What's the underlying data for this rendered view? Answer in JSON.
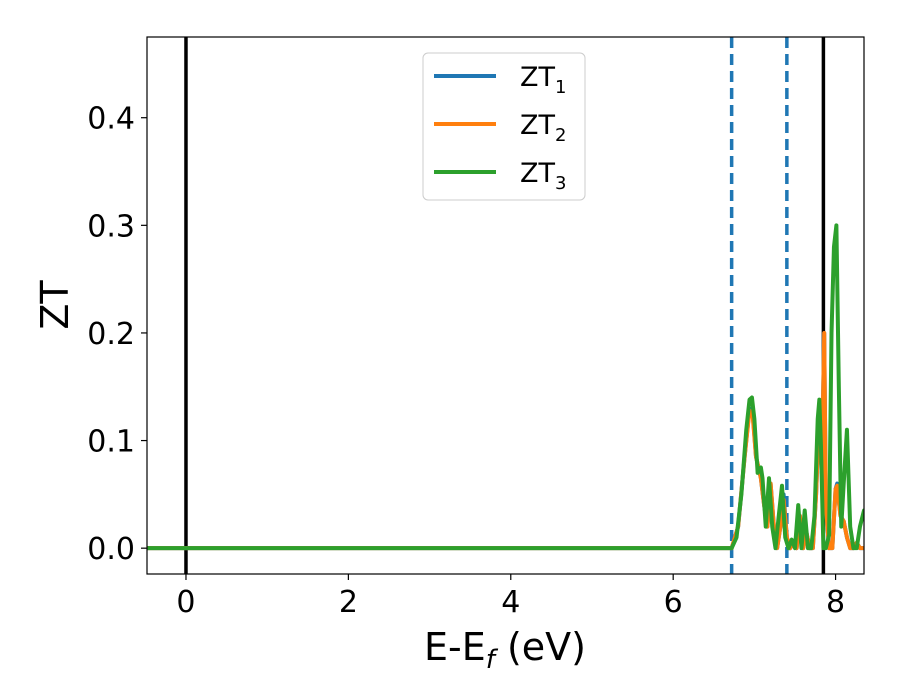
{
  "chart_data": {
    "type": "line",
    "xlabel": "E-E",
    "xlabel_sub": "f",
    "xlabel_unit": " (eV)",
    "ylabel": "ZT",
    "xlim": [
      -0.48,
      8.35
    ],
    "ylim": [
      -0.024,
      0.475
    ],
    "xticks": [
      0,
      2,
      4,
      6,
      8
    ],
    "yticks": [
      0.0,
      0.1,
      0.2,
      0.3,
      0.4
    ],
    "xtick_labels": [
      "0",
      "2",
      "4",
      "6",
      "8"
    ],
    "ytick_labels": [
      "0.0",
      "0.1",
      "0.2",
      "0.3",
      "0.4"
    ],
    "grid": false,
    "legend": {
      "placement": "top-center",
      "entries": [
        {
          "base": "ZT",
          "sub": "1",
          "color": "#1f77b4"
        },
        {
          "base": "ZT",
          "sub": "2",
          "color": "#ff7f0e"
        },
        {
          "base": "ZT",
          "sub": "3",
          "color": "#2ca02c"
        }
      ]
    },
    "vertical_lines": [
      {
        "x": 0.0,
        "style": "solid",
        "color": "#000000"
      },
      {
        "x": 6.72,
        "style": "dashed",
        "color": "#1f77b4"
      },
      {
        "x": 7.4,
        "style": "dashed",
        "color": "#1f77b4"
      },
      {
        "x": 7.85,
        "style": "solid",
        "color": "#000000"
      }
    ],
    "series": [
      {
        "name": "ZT_1",
        "color": "#1f77b4",
        "x": [
          -0.48,
          6.72,
          6.8,
          6.88,
          6.94,
          6.98,
          7.02,
          7.08,
          7.12,
          7.16,
          7.2,
          7.24,
          7.28,
          7.32,
          7.36,
          7.4,
          7.44,
          7.48,
          7.52,
          7.56,
          7.6,
          7.64,
          7.68,
          7.72,
          7.76,
          7.8,
          7.83,
          7.86,
          7.88,
          7.92,
          7.96,
          8.0,
          8.02,
          8.06,
          8.1,
          8.14,
          8.18,
          8.22,
          8.26,
          8.3,
          8.35
        ],
        "y": [
          0.0,
          0.0,
          0.02,
          0.085,
          0.13,
          0.125,
          0.085,
          0.065,
          0.04,
          0.02,
          0.06,
          0.02,
          0.0,
          0.02,
          0.05,
          0.01,
          0.0,
          0.005,
          0.0,
          0.03,
          0.0,
          0.015,
          0.0,
          0.0,
          0.05,
          0.13,
          0.07,
          0.2,
          0.04,
          0.0,
          0.0,
          0.055,
          0.06,
          0.03,
          0.025,
          0.01,
          0.0,
          0.0,
          0.005,
          0.0,
          0.0
        ]
      },
      {
        "name": "ZT_2",
        "color": "#ff7f0e",
        "x": [
          -0.48,
          6.72,
          6.8,
          6.88,
          6.94,
          6.98,
          7.02,
          7.08,
          7.12,
          7.16,
          7.2,
          7.24,
          7.28,
          7.32,
          7.36,
          7.4,
          7.44,
          7.48,
          7.52,
          7.56,
          7.6,
          7.64,
          7.68,
          7.72,
          7.76,
          7.8,
          7.83,
          7.86,
          7.88,
          7.92,
          7.96,
          8.0,
          8.02,
          8.06,
          8.1,
          8.14,
          8.18,
          8.22,
          8.26,
          8.3,
          8.35
        ],
        "y": [
          0.0,
          0.0,
          0.02,
          0.085,
          0.128,
          0.122,
          0.085,
          0.065,
          0.04,
          0.02,
          0.06,
          0.02,
          0.0,
          0.02,
          0.045,
          0.01,
          0.0,
          0.005,
          0.0,
          0.03,
          0.0,
          0.015,
          0.0,
          0.0,
          0.05,
          0.13,
          0.07,
          0.2,
          0.04,
          0.0,
          0.0,
          0.055,
          0.058,
          0.03,
          0.025,
          0.01,
          0.0,
          0.0,
          0.005,
          0.0,
          0.0
        ]
      },
      {
        "name": "ZT_3",
        "color": "#2ca02c",
        "x": [
          -0.48,
          6.72,
          6.78,
          6.84,
          6.9,
          6.94,
          6.97,
          7.0,
          7.04,
          7.08,
          7.1,
          7.14,
          7.18,
          7.22,
          7.26,
          7.3,
          7.34,
          7.38,
          7.42,
          7.46,
          7.5,
          7.54,
          7.58,
          7.62,
          7.66,
          7.7,
          7.74,
          7.78,
          7.8,
          7.82,
          7.85,
          7.88,
          7.92,
          7.95,
          7.98,
          8.01,
          8.04,
          8.07,
          8.1,
          8.14,
          8.18,
          8.22,
          8.26,
          8.3,
          8.35
        ],
        "y": [
          0.0,
          0.0,
          0.01,
          0.05,
          0.11,
          0.138,
          0.14,
          0.12,
          0.07,
          0.075,
          0.065,
          0.02,
          0.065,
          0.02,
          0.0,
          0.03,
          0.058,
          0.01,
          0.0,
          0.008,
          0.0,
          0.04,
          0.0,
          0.035,
          0.0,
          0.0,
          0.03,
          0.12,
          0.138,
          0.095,
          0.0,
          0.0,
          0.012,
          0.2,
          0.28,
          0.3,
          0.15,
          0.02,
          0.06,
          0.11,
          0.02,
          0.0,
          0.0,
          0.02,
          0.035
        ]
      }
    ]
  }
}
